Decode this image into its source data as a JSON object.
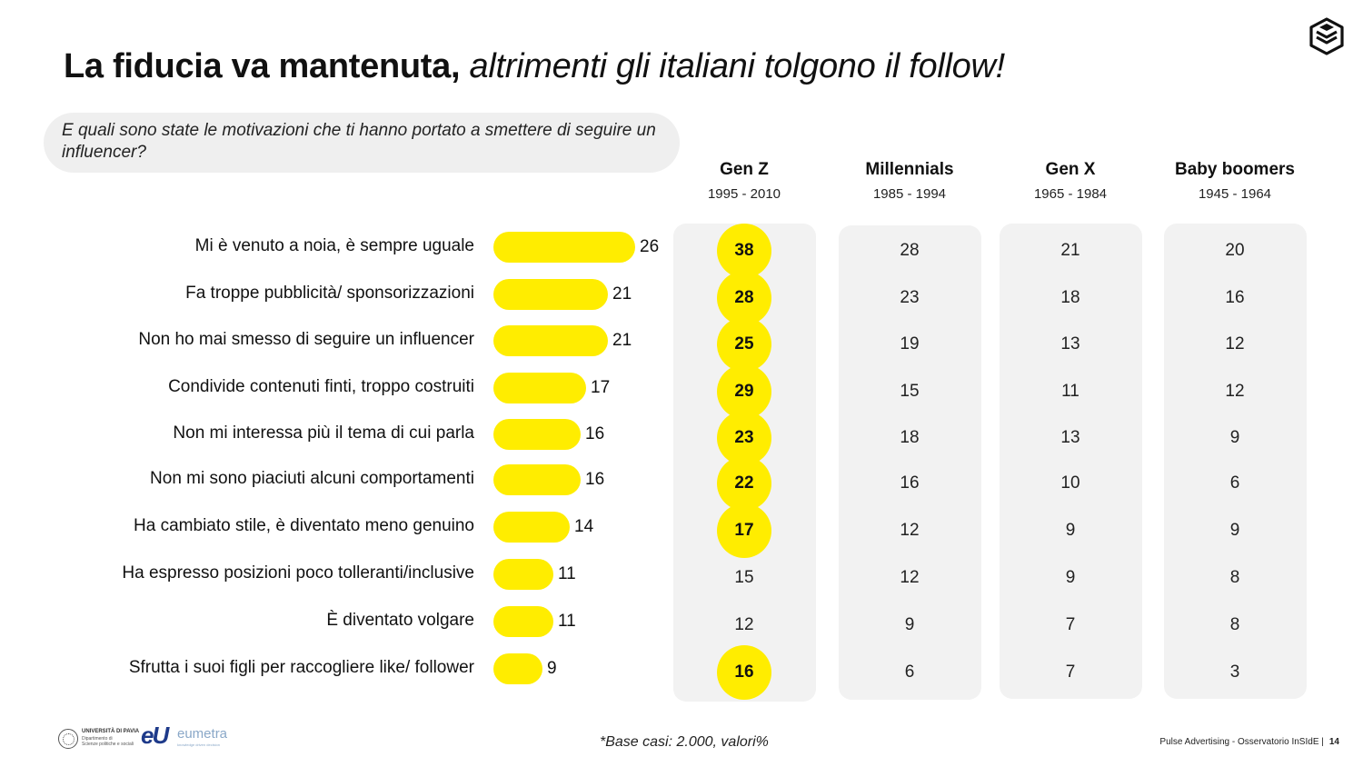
{
  "title": {
    "bold": "La fiducia va mantenuta,",
    "italic": "altrimenti gli italiani tolgono il follow!"
  },
  "question": "E quali sono state le motivazioni che ti hanno portato a smettere di seguire un influencer?",
  "generations": [
    {
      "name": "Gen Z",
      "years": "1995 - 2010"
    },
    {
      "name": "Millennials",
      "years": "1985 - 1994"
    },
    {
      "name": "Gen X",
      "years": "1965 - 1984"
    },
    {
      "name": "Baby boomers",
      "years": "1945 - 1964"
    }
  ],
  "chart_data": {
    "type": "bar",
    "orientation": "horizontal",
    "categories": [
      "Mi è venuto a noia, è sempre uguale",
      "Fa troppe pubblicità/ sponsorizzazioni",
      "Non ho mai smesso di seguire un influencer",
      "Condivide contenuti finti, troppo costruiti",
      "Non mi interessa più il tema di cui parla",
      "Non mi sono piaciuti alcuni comportamenti",
      "Ha cambiato stile, è diventato meno genuino",
      "Ha espresso posizioni poco tolleranti/inclusive",
      "È diventato volgare",
      "Sfrutta i suoi figli per raccogliere like/ follower"
    ],
    "values": [
      26,
      21,
      21,
      17,
      16,
      16,
      14,
      11,
      11,
      9
    ],
    "bar_color": "#ffed00",
    "table": {
      "columns": [
        "Gen Z",
        "Millennials",
        "Gen X",
        "Baby boomers"
      ],
      "rows": [
        [
          38,
          28,
          21,
          20
        ],
        [
          28,
          23,
          18,
          16
        ],
        [
          25,
          19,
          13,
          12
        ],
        [
          29,
          15,
          11,
          12
        ],
        [
          23,
          18,
          13,
          9
        ],
        [
          22,
          16,
          10,
          6
        ],
        [
          17,
          12,
          9,
          9
        ],
        [
          15,
          12,
          9,
          8
        ],
        [
          12,
          9,
          7,
          8
        ],
        [
          16,
          6,
          7,
          3
        ]
      ],
      "highlighted_gen_z": [
        true,
        true,
        true,
        true,
        true,
        true,
        true,
        false,
        false,
        true
      ],
      "highlight_color": "#ffed00"
    }
  },
  "footnote": "*Base casi: 2.000, valori%",
  "footer": {
    "text": "Pulse Advertising - Osservatorio InSIdE |",
    "page": "14"
  },
  "logos": {
    "university": {
      "line1": "UNIVERSITÀ DI PAVIA",
      "line2": "Dipartimento di",
      "line3": "Scienze politiche e sociali"
    },
    "eumetra": {
      "mark": "eU",
      "word": "eumetra",
      "tag": "knowledge driven decision"
    }
  }
}
